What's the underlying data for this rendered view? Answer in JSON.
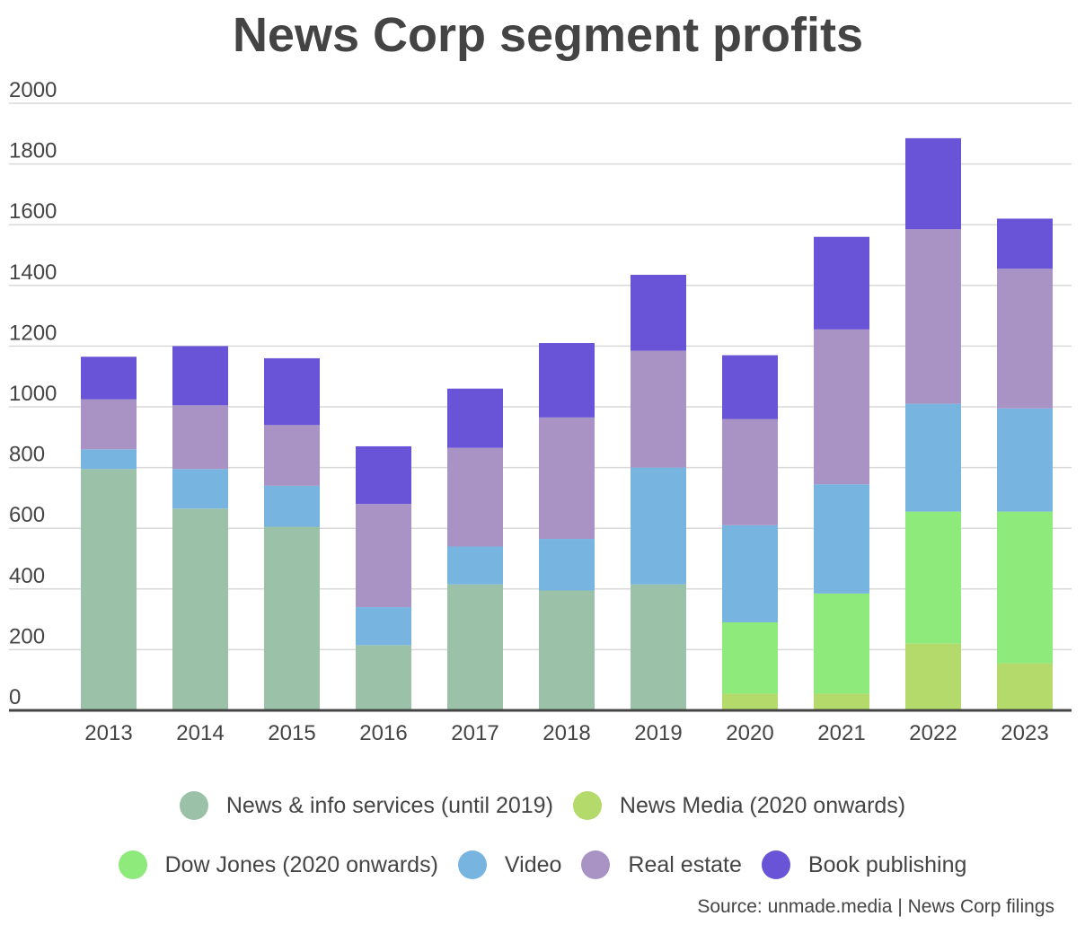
{
  "title": "News Corp segment profits",
  "source": "Source: unmade.media | News Corp filings",
  "chart_data": {
    "type": "bar",
    "stacked": true,
    "title": "News Corp segment profits",
    "xlabel": "",
    "ylabel": "",
    "ylim": [
      0,
      2000
    ],
    "yticks": [
      0,
      200,
      400,
      600,
      800,
      1000,
      1200,
      1400,
      1600,
      1800,
      2000
    ],
    "grid": true,
    "legend_position": "bottom",
    "categories": [
      "2013",
      "2014",
      "2015",
      "2016",
      "2017",
      "2018",
      "2019",
      "2020",
      "2021",
      "2022",
      "2023"
    ],
    "series": [
      {
        "name": "News & info services (until 2019)",
        "color": "#9bc2a8",
        "values": [
          795,
          665,
          605,
          215,
          415,
          395,
          415,
          0,
          0,
          0,
          0
        ]
      },
      {
        "name": "News Media (2020 onwards)",
        "color": "#b3da6a",
        "values": [
          0,
          0,
          0,
          0,
          0,
          0,
          0,
          55,
          55,
          220,
          155
        ]
      },
      {
        "name": "Dow Jones (2020 onwards)",
        "color": "#8fea7c",
        "values": [
          0,
          0,
          0,
          0,
          0,
          0,
          0,
          235,
          330,
          435,
          500
        ]
      },
      {
        "name": "Video",
        "color": "#77b4e0",
        "values": [
          65,
          130,
          135,
          125,
          125,
          170,
          385,
          320,
          360,
          355,
          340
        ]
      },
      {
        "name": "Real estate",
        "color": "#a893c4",
        "values": [
          165,
          210,
          200,
          340,
          325,
          400,
          385,
          350,
          510,
          575,
          460
        ]
      },
      {
        "name": "Book publishing",
        "color": "#6953d6",
        "values": [
          140,
          195,
          220,
          190,
          195,
          245,
          250,
          210,
          305,
          300,
          165
        ]
      }
    ]
  }
}
